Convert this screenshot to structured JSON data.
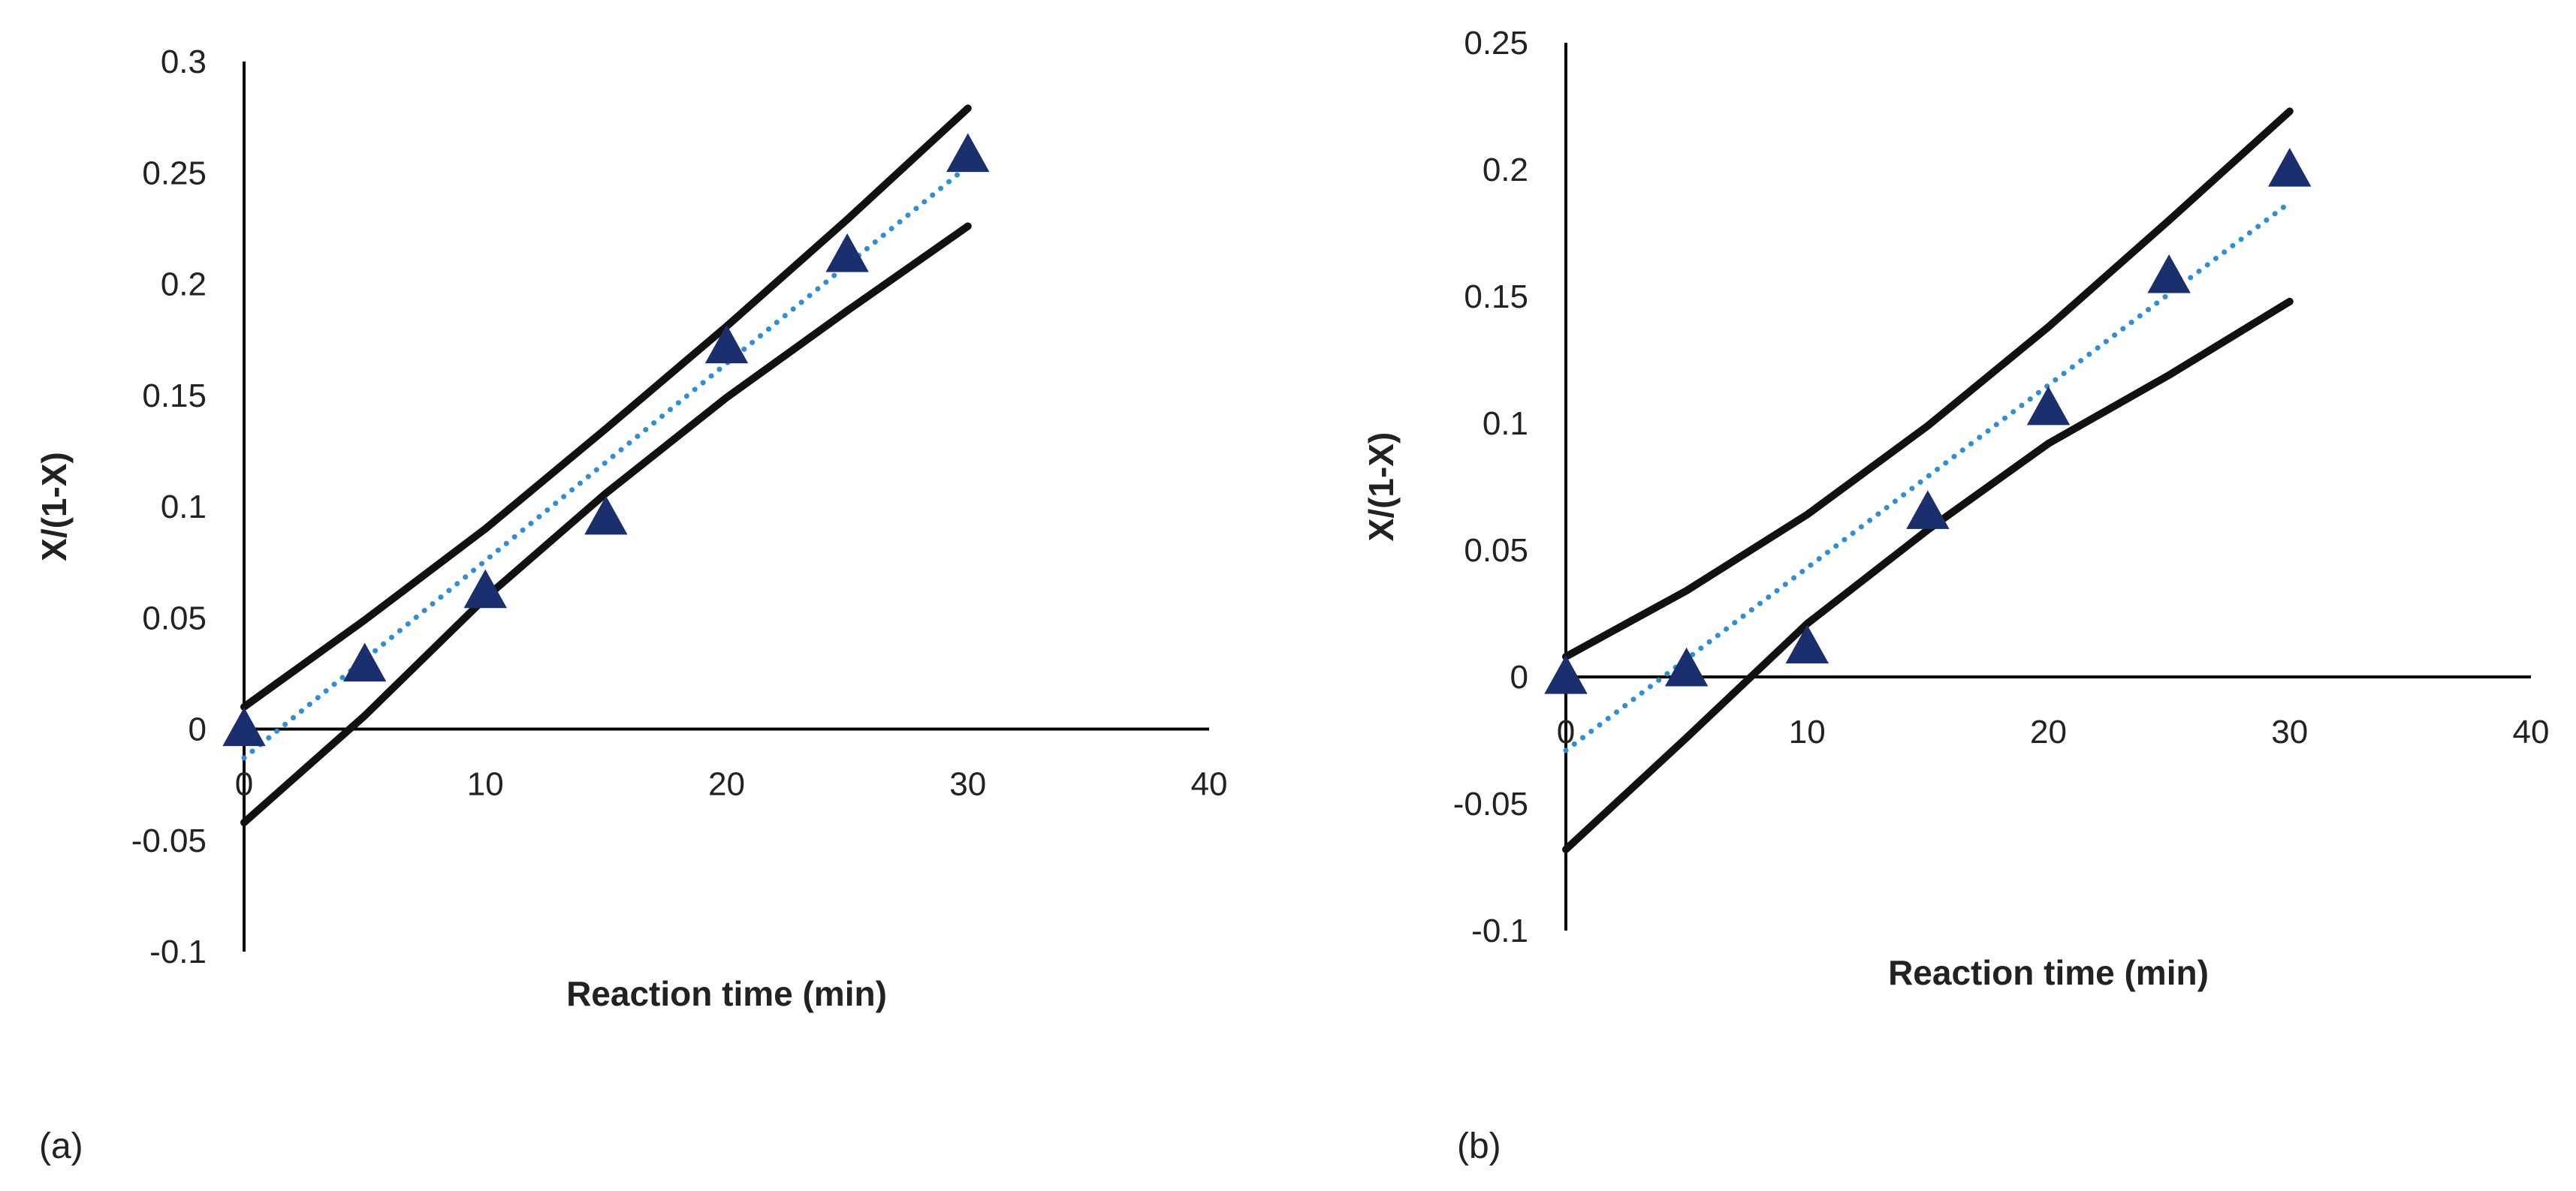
{
  "chart_data": [
    {
      "type": "scatter",
      "panel_label": "(a)",
      "xlabel": "Reaction time (min)",
      "ylabel": "X/(1-X)",
      "xlim": [
        0,
        40
      ],
      "ylim": [
        -0.1,
        0.3
      ],
      "x_ticks": [
        0,
        10,
        20,
        30,
        40
      ],
      "x_tick_labels": [
        "0",
        "10",
        "20",
        "30",
        "40"
      ],
      "y_ticks": [
        -0.1,
        -0.05,
        0,
        0.05,
        0.1,
        0.15,
        0.2,
        0.25,
        0.3
      ],
      "y_tick_labels": [
        "-0.1",
        "-0.05",
        "0",
        "0.05",
        "0.1",
        "0.15",
        "0.2",
        "0.25",
        "0.3"
      ],
      "series": [
        {
          "name": "data",
          "kind": "points",
          "marker": "triangle",
          "color": "#1b2f6e",
          "x": [
            0,
            5,
            10,
            15,
            20,
            25,
            30
          ],
          "y": [
            0,
            0.029,
            0.062,
            0.095,
            0.172,
            0.213,
            0.258
          ]
        },
        {
          "name": "linear fit",
          "kind": "line",
          "style": "dotted",
          "color": "#2f8fd6",
          "x": [
            0,
            30
          ],
          "y": [
            -0.013,
            0.253
          ]
        },
        {
          "name": "upper confidence band",
          "kind": "line",
          "style": "solid",
          "color": "#111111",
          "x": [
            0,
            5,
            10,
            15,
            20,
            25,
            30
          ],
          "y": [
            0.01,
            0.049,
            0.09,
            0.135,
            0.181,
            0.229,
            0.279
          ]
        },
        {
          "name": "lower confidence band",
          "kind": "line",
          "style": "solid",
          "color": "#111111",
          "x": [
            0,
            5,
            10,
            15,
            20,
            25,
            30
          ],
          "y": [
            -0.042,
            0.006,
            0.059,
            0.106,
            0.149,
            0.188,
            0.226
          ]
        }
      ]
    },
    {
      "type": "scatter",
      "panel_label": "(b)",
      "xlabel": "Reaction time (min)",
      "ylabel": "X/(1-X)",
      "xlim": [
        0,
        40
      ],
      "ylim": [
        -0.1,
        0.25
      ],
      "x_ticks": [
        0,
        10,
        20,
        30,
        40
      ],
      "x_tick_labels": [
        "0",
        "10",
        "20",
        "30",
        "40"
      ],
      "y_ticks": [
        -0.1,
        -0.05,
        0,
        0.05,
        0.1,
        0.15,
        0.2,
        0.25
      ],
      "y_tick_labels": [
        "-0.1",
        "-0.05",
        "0",
        "0.05",
        "0.1",
        "0.15",
        "0.2",
        "0.25"
      ],
      "series": [
        {
          "name": "data",
          "kind": "points",
          "marker": "triangle",
          "color": "#1b2f6e",
          "x": [
            0,
            5,
            10,
            15,
            20,
            25,
            30
          ],
          "y": [
            0,
            0.003,
            0.012,
            0.065,
            0.106,
            0.158,
            0.2
          ]
        },
        {
          "name": "linear fit",
          "kind": "line",
          "style": "dotted",
          "color": "#2f8fd6",
          "x": [
            0,
            30
          ],
          "y": [
            -0.029,
            0.187
          ]
        },
        {
          "name": "upper confidence band",
          "kind": "line",
          "style": "solid",
          "color": "#111111",
          "x": [
            0,
            5,
            10,
            15,
            20,
            25,
            30
          ],
          "y": [
            0.008,
            0.034,
            0.064,
            0.099,
            0.138,
            0.18,
            0.223
          ]
        },
        {
          "name": "lower confidence band",
          "kind": "line",
          "style": "solid",
          "color": "#111111",
          "x": [
            0,
            5,
            10,
            15,
            20,
            25,
            30
          ],
          "y": [
            -0.068,
            -0.024,
            0.021,
            0.058,
            0.092,
            0.119,
            0.148
          ]
        }
      ]
    }
  ]
}
